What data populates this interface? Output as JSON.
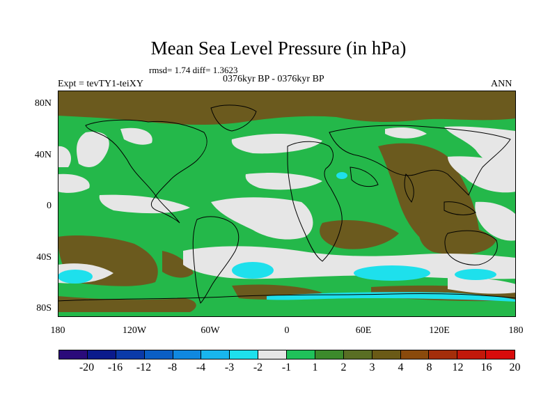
{
  "title": "Mean Sea Level Pressure (in hPa)",
  "stats": "rmsd= 1.74 diff= 1.3623",
  "period": "0376kyr BP - 0376kyr BP",
  "expt": "Expt = tevTY1-teiXY",
  "season": "ANN",
  "lat_labels": [
    "80N",
    "40N",
    "0",
    "40S",
    "80S"
  ],
  "lon_labels": [
    "180",
    "120W",
    "60W",
    "0",
    "60E",
    "120E",
    "180"
  ],
  "colorbar": {
    "colors": [
      "#2a0a7a",
      "#0a1a8c",
      "#0a3aa8",
      "#0a5ec4",
      "#1088e0",
      "#18b6ee",
      "#1ee0ec",
      "#e6e6e6",
      "#1fc15a",
      "#3c8a2c",
      "#596e24",
      "#6a5a16",
      "#8a4a0c",
      "#a42e0a",
      "#c2180a",
      "#d80c0c"
    ],
    "labels": [
      "-20",
      "-16",
      "-12",
      "-8",
      "-4",
      "-3",
      "-2",
      "-1",
      "1",
      "2",
      "3",
      "4",
      "8",
      "12",
      "16",
      "20"
    ]
  }
}
